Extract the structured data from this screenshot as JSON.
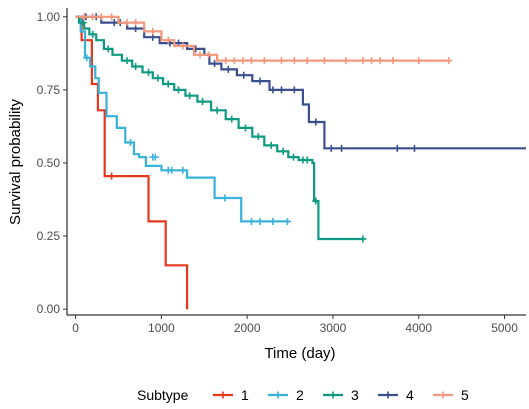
{
  "chart_data": {
    "type": "line",
    "subtype": "kaplan-meier survival curve",
    "xlabel": "Time (day)",
    "ylabel": "Survival probability",
    "xlim": [
      -100,
      5250
    ],
    "ylim": [
      -0.02,
      1.03
    ],
    "x_ticks": [
      0,
      1000,
      2000,
      3000,
      4000,
      5000
    ],
    "x_tick_labels": [
      "0",
      "1000",
      "2000",
      "3000",
      "4000",
      "5000"
    ],
    "y_ticks": [
      0,
      0.25,
      0.5,
      0.75,
      1.0
    ],
    "y_tick_labels": [
      "0.00",
      "0.25",
      "0.50",
      "0.75",
      "1.00"
    ],
    "grid": false,
    "legend": {
      "title": "Subtype",
      "position": "bottom"
    },
    "series": [
      {
        "name": "1",
        "color": "#e5391d",
        "steps": [
          [
            0,
            1.0
          ],
          [
            70,
            0.92
          ],
          [
            190,
            0.77
          ],
          [
            260,
            0.68
          ],
          [
            340,
            0.455
          ],
          [
            850,
            0.3
          ],
          [
            1050,
            0.15
          ],
          [
            1300,
            0.0
          ]
        ],
        "censors": [
          [
            110,
            0.92
          ],
          [
            420,
            0.455
          ]
        ]
      },
      {
        "name": "2",
        "color": "#3ab1d8",
        "steps": [
          [
            0,
            1.0
          ],
          [
            60,
            0.95
          ],
          [
            110,
            0.86
          ],
          [
            170,
            0.83
          ],
          [
            230,
            0.79
          ],
          [
            270,
            0.74
          ],
          [
            360,
            0.66
          ],
          [
            480,
            0.62
          ],
          [
            580,
            0.57
          ],
          [
            680,
            0.53
          ],
          [
            740,
            0.52
          ],
          [
            820,
            0.49
          ],
          [
            1000,
            0.475
          ],
          [
            1300,
            0.45
          ],
          [
            1620,
            0.38
          ],
          [
            1930,
            0.3
          ]
        ],
        "end": 2470,
        "censors": [
          [
            130,
            0.86
          ],
          [
            640,
            0.57
          ],
          [
            900,
            0.52
          ],
          [
            930,
            0.52
          ],
          [
            1080,
            0.475
          ],
          [
            1120,
            0.475
          ],
          [
            1250,
            0.475
          ],
          [
            1740,
            0.38
          ],
          [
            2050,
            0.3
          ],
          [
            2150,
            0.3
          ],
          [
            2300,
            0.3
          ],
          [
            2470,
            0.3
          ]
        ]
      },
      {
        "name": "3",
        "color": "#0e9a80",
        "steps": [
          [
            0,
            1.0
          ],
          [
            40,
            0.98
          ],
          [
            100,
            0.96
          ],
          [
            160,
            0.94
          ],
          [
            240,
            0.92
          ],
          [
            330,
            0.89
          ],
          [
            430,
            0.87
          ],
          [
            540,
            0.85
          ],
          [
            660,
            0.83
          ],
          [
            780,
            0.81
          ],
          [
            900,
            0.79
          ],
          [
            1020,
            0.77
          ],
          [
            1150,
            0.75
          ],
          [
            1280,
            0.73
          ],
          [
            1420,
            0.71
          ],
          [
            1580,
            0.68
          ],
          [
            1750,
            0.65
          ],
          [
            1900,
            0.62
          ],
          [
            2060,
            0.59
          ],
          [
            2200,
            0.56
          ],
          [
            2350,
            0.54
          ],
          [
            2480,
            0.52
          ],
          [
            2600,
            0.51
          ],
          [
            2760,
            0.5
          ],
          [
            2780,
            0.37
          ],
          [
            2830,
            0.24
          ]
        ],
        "end": 3350,
        "censors": [
          [
            90,
            0.98
          ],
          [
            200,
            0.94
          ],
          [
            380,
            0.89
          ],
          [
            600,
            0.85
          ],
          [
            700,
            0.83
          ],
          [
            850,
            0.81
          ],
          [
            960,
            0.79
          ],
          [
            1080,
            0.77
          ],
          [
            1200,
            0.75
          ],
          [
            1330,
            0.73
          ],
          [
            1480,
            0.71
          ],
          [
            1650,
            0.68
          ],
          [
            1820,
            0.65
          ],
          [
            1980,
            0.62
          ],
          [
            2130,
            0.59
          ],
          [
            2280,
            0.56
          ],
          [
            2420,
            0.54
          ],
          [
            2540,
            0.52
          ],
          [
            2650,
            0.51
          ],
          [
            2700,
            0.51
          ],
          [
            2800,
            0.37
          ],
          [
            3350,
            0.24
          ]
        ]
      },
      {
        "name": "4",
        "color": "#3b4f8e",
        "steps": [
          [
            0,
            1.0
          ],
          [
            300,
            0.98
          ],
          [
            600,
            0.96
          ],
          [
            800,
            0.93
          ],
          [
            980,
            0.91
          ],
          [
            1300,
            0.89
          ],
          [
            1500,
            0.87
          ],
          [
            1560,
            0.84
          ],
          [
            1700,
            0.82
          ],
          [
            1880,
            0.8
          ],
          [
            2060,
            0.78
          ],
          [
            2260,
            0.75
          ],
          [
            2650,
            0.7
          ],
          [
            2720,
            0.64
          ],
          [
            2900,
            0.55
          ]
        ],
        "end": 5250,
        "censors": [
          [
            120,
            1.0
          ],
          [
            240,
            1.0
          ],
          [
            450,
            0.98
          ],
          [
            520,
            0.98
          ],
          [
            700,
            0.96
          ],
          [
            900,
            0.93
          ],
          [
            1100,
            0.91
          ],
          [
            1200,
            0.91
          ],
          [
            1400,
            0.89
          ],
          [
            1620,
            0.84
          ],
          [
            1780,
            0.82
          ],
          [
            1960,
            0.8
          ],
          [
            2150,
            0.78
          ],
          [
            2300,
            0.75
          ],
          [
            2400,
            0.75
          ],
          [
            2550,
            0.75
          ],
          [
            2800,
            0.64
          ],
          [
            2980,
            0.55
          ],
          [
            3100,
            0.55
          ],
          [
            3750,
            0.55
          ],
          [
            3950,
            0.55
          ]
        ]
      },
      {
        "name": "5",
        "color": "#f3987c",
        "steps": [
          [
            0,
            1.0
          ],
          [
            500,
            0.98
          ],
          [
            800,
            0.95
          ],
          [
            1000,
            0.92
          ],
          [
            1150,
            0.9
          ],
          [
            1380,
            0.87
          ],
          [
            1650,
            0.85
          ]
        ],
        "end": 4350,
        "censors": [
          [
            100,
            1.0
          ],
          [
            200,
            1.0
          ],
          [
            300,
            1.0
          ],
          [
            420,
            1.0
          ],
          [
            600,
            0.98
          ],
          [
            700,
            0.98
          ],
          [
            900,
            0.95
          ],
          [
            1080,
            0.92
          ],
          [
            1250,
            0.9
          ],
          [
            1450,
            0.87
          ],
          [
            1550,
            0.87
          ],
          [
            1750,
            0.85
          ],
          [
            1850,
            0.85
          ],
          [
            1950,
            0.85
          ],
          [
            2050,
            0.85
          ],
          [
            2200,
            0.85
          ],
          [
            2400,
            0.85
          ],
          [
            2550,
            0.85
          ],
          [
            2700,
            0.85
          ],
          [
            2900,
            0.85
          ],
          [
            3150,
            0.85
          ],
          [
            3350,
            0.85
          ],
          [
            3450,
            0.85
          ],
          [
            3550,
            0.85
          ],
          [
            3700,
            0.85
          ],
          [
            4000,
            0.85
          ],
          [
            4350,
            0.85
          ]
        ]
      }
    ]
  }
}
